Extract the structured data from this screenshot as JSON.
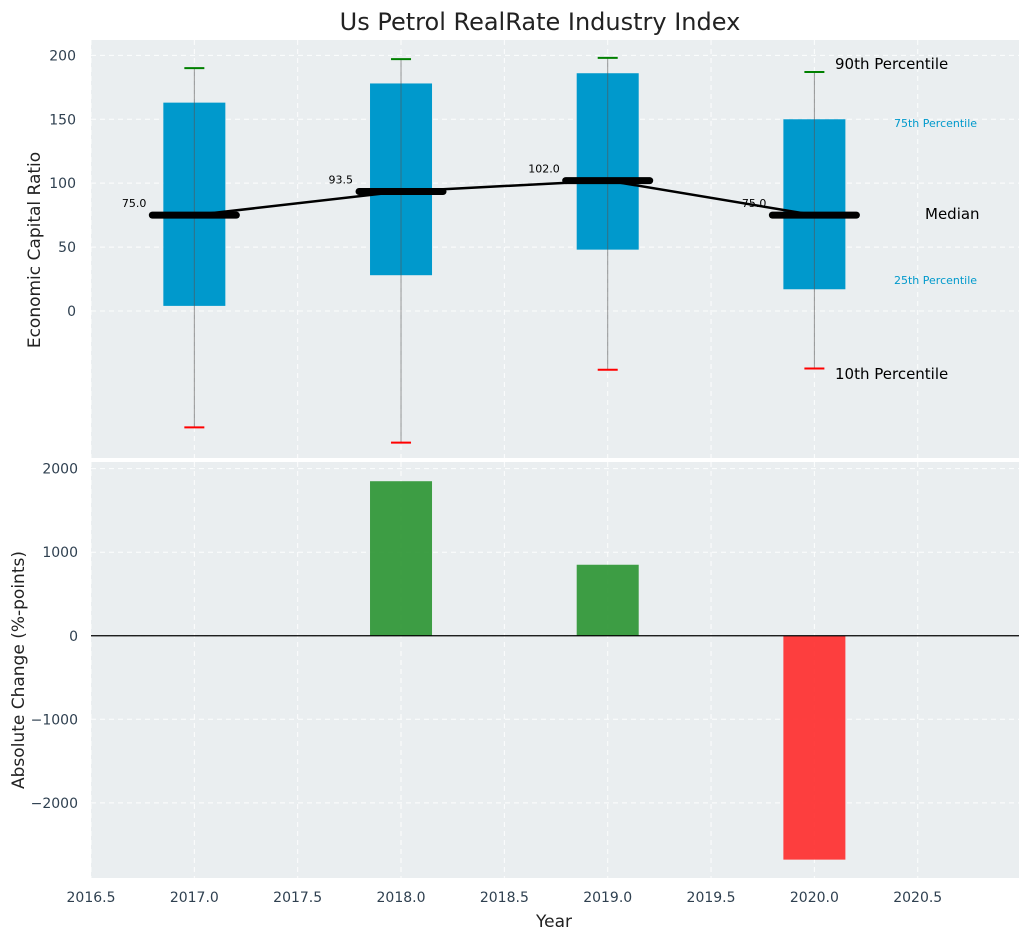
{
  "chart_data": [
    {
      "type": "box",
      "title": "Us Petrol RealRate Industry Index",
      "ylabel": "Economic Capital Ratio",
      "ylim": [
        -115,
        212
      ],
      "yticks": [
        0,
        50,
        100,
        150,
        200
      ],
      "grid": true,
      "x": [
        2017,
        2018,
        2019,
        2020
      ],
      "p10": [
        -91,
        -103,
        -46,
        -45
      ],
      "p25": [
        4,
        28,
        48,
        17
      ],
      "median": [
        75.0,
        93.5,
        102.0,
        75.0
      ],
      "median_labels": [
        "75.0",
        "93.5",
        "102.0",
        "75.0"
      ],
      "p75": [
        163,
        178,
        186,
        150
      ],
      "p90": [
        190,
        197,
        198,
        187
      ],
      "legend": {
        "p90": "90th Percentile",
        "p75": "75th Percentile",
        "median": "Median",
        "p25": "25th Percentile",
        "p10": "10th Percentile"
      },
      "colors": {
        "box": "#0099cc",
        "median": "#000000",
        "p90": "#008000",
        "p10": "#ff0000",
        "plot_bg": "#eaeef0"
      }
    },
    {
      "type": "bar",
      "ylabel": "Absolute Change (%-points)",
      "xlabel": "Year",
      "xlim": [
        2016.5,
        2020.99
      ],
      "ylim": [
        -2900,
        2080
      ],
      "yticks": [
        2000,
        1000,
        0,
        -1000,
        -2000
      ],
      "ytick_labels": [
        "2000",
        "1000",
        "0",
        "−1000",
        "−2000"
      ],
      "xticks": [
        2016.5,
        2017.0,
        2017.5,
        2018.0,
        2018.5,
        2019.0,
        2019.5,
        2020.0,
        2020.5
      ],
      "xtick_labels": [
        "2016.5",
        "2017.0",
        "2017.5",
        "2018.0",
        "2018.5",
        "2019.0",
        "2019.5",
        "2020.0",
        "2020.5"
      ],
      "x": [
        2018,
        2019,
        2020
      ],
      "values": [
        1850,
        850,
        -2680
      ],
      "grid": true,
      "colors": {
        "positive": "#2a9431",
        "negative": "#ff2a2a",
        "plot_bg": "#eaeef0"
      }
    }
  ]
}
